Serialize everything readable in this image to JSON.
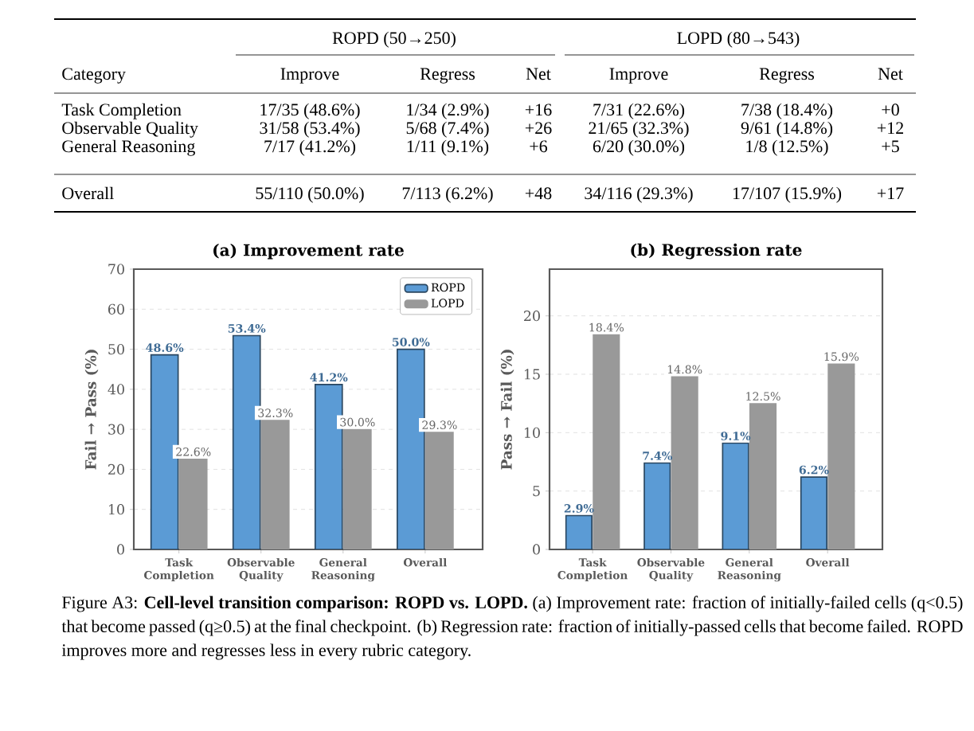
{
  "chart_data": [
    {
      "type": "other",
      "annotations": [
        "ROPD (50→250)",
        "LOPD (80→543)",
        "Category",
        "Improve",
        "Regress",
        "Net",
        "Improve",
        "Regress",
        "Net",
        "Task Completion",
        "17/35 (48.6%)",
        "1/34 (2.9%)",
        "+16",
        "7/31 (22.6%)",
        "7/38 (18.4%)",
        "+0",
        "Observable Quality",
        "31/58 (53.4%)",
        "5/68 (7.4%)",
        "+26",
        "21/65 (32.3%)",
        "9/61 (14.8%)",
        "+12",
        "General Reasoning",
        "7/17 (41.2%)",
        "1/11 (9.1%)",
        "+6",
        "6/20 (30.0%)",
        "1/8 (12.5%)",
        "+5",
        "Overall",
        "55/110 (50.0%)",
        "7/113 (6.2%)",
        "+48",
        "34/116 (29.3%)",
        "17/107 (15.9%)",
        "+17"
      ]
    },
    {
      "type": "bar",
      "title": "(a) Improvement rate",
      "ylabel": "Fail → Pass (%)",
      "categories": [
        "Task Completion",
        "Observable Quality",
        "General Reasoning",
        "Overall"
      ],
      "series": [
        {
          "name": "ROPD",
          "color": "#5b9bd5",
          "values": [
            48.6,
            53.4,
            41.2,
            50.0
          ],
          "value_labels": [
            "48.6%",
            "53.4%",
            "41.2%",
            "50.0%"
          ]
        },
        {
          "name": "LOPD",
          "color": "#999999",
          "values": [
            22.6,
            32.3,
            30.0,
            29.3
          ],
          "value_labels": [
            "22.6%",
            "32.3%",
            "30.0%",
            "29.3%"
          ]
        }
      ],
      "ylim": [
        0,
        70
      ],
      "yticks": [
        0,
        10,
        20,
        30,
        40,
        50,
        60,
        70
      ],
      "grid": "y",
      "legend": "top right"
    },
    {
      "type": "bar",
      "title": "(b) Regression rate",
      "ylabel": "Pass → Fail (%)",
      "categories": [
        "Task Completion",
        "Observable Quality",
        "General Reasoning",
        "Overall"
      ],
      "series": [
        {
          "color": "#5b9bd5",
          "values": [
            2.9,
            7.4,
            9.1,
            6.2
          ],
          "value_labels": [
            "2.9%",
            "7.4%",
            "9.1%",
            "6.2%"
          ]
        },
        {
          "color": "#999999",
          "values": [
            18.4,
            14.8,
            12.5,
            15.9
          ],
          "value_labels": [
            "18.4%",
            "14.8%",
            "12.5%",
            "15.9%"
          ]
        }
      ],
      "ylim": [
        0,
        24
      ],
      "yticks": [
        0,
        5,
        10,
        15,
        20
      ],
      "grid": "y",
      "annotations": [
        "Figure A3: **Cell-level transition comparison: ROPD vs. LOPD.** (a) Improvement rate: fraction of initially-failed cells (q<0.5) that become passed (q≥0.5) at the final checkpoint. (b) Regression rate: fraction of initially-passed cells that become failed. ROPD improves more and regresses less in every rubric category."
      ]
    }
  ]
}
